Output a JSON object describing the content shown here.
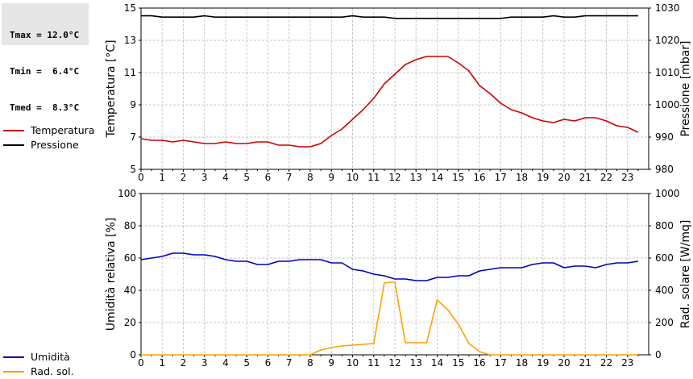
{
  "stats": {
    "tmax": "Tmax = 12.0°C",
    "tmin": "Tmin =  6.4°C",
    "tmed": "Tmed =  8.3°C"
  },
  "chart_data": [
    {
      "type": "line",
      "x_ticks": [
        "0",
        "1",
        "2",
        "3",
        "4",
        "5",
        "6",
        "7",
        "8",
        "9",
        "10",
        "11",
        "12",
        "13",
        "14",
        "15",
        "16",
        "17",
        "18",
        "19",
        "20",
        "21",
        "22",
        "23"
      ],
      "xlim": [
        0,
        24
      ],
      "ylabel_left": "Temperatura [°C]",
      "ylabel_right": "Pressione [mbar]",
      "ylim_left": [
        5,
        15
      ],
      "ylim_right": [
        980,
        1030
      ],
      "y_ticks_left": [
        5,
        7,
        9,
        11,
        13,
        15
      ],
      "y_ticks_right": [
        980,
        990,
        1000,
        1010,
        1020,
        1030
      ],
      "grid": true,
      "legend_position": "left",
      "series": [
        {
          "name": "Temperatura",
          "axis": "left",
          "color": "#cc0000",
          "x": [
            0,
            0.5,
            1,
            1.5,
            2,
            2.5,
            3,
            3.5,
            4,
            4.5,
            5,
            5.5,
            6,
            6.5,
            7,
            7.5,
            8,
            8.5,
            9,
            9.5,
            10,
            10.5,
            11,
            11.5,
            12,
            12.5,
            13,
            13.5,
            14,
            14.5,
            15,
            15.5,
            16,
            16.5,
            17,
            17.5,
            18,
            18.5,
            19,
            19.5,
            20,
            20.5,
            21,
            21.5,
            22,
            22.5,
            23,
            23.5
          ],
          "values": [
            6.9,
            6.8,
            6.8,
            6.7,
            6.8,
            6.7,
            6.6,
            6.6,
            6.7,
            6.6,
            6.6,
            6.7,
            6.7,
            6.5,
            6.5,
            6.4,
            6.4,
            6.6,
            7.1,
            7.5,
            8.1,
            8.7,
            9.4,
            10.3,
            10.9,
            11.5,
            11.8,
            12.0,
            12.0,
            12.0,
            11.6,
            11.1,
            10.2,
            9.7,
            9.1,
            8.7,
            8.5,
            8.2,
            8.0,
            7.9,
            8.1,
            8.0,
            8.2,
            8.2,
            8.0,
            7.7,
            7.6,
            7.3
          ]
        },
        {
          "name": "Pressione",
          "axis": "right",
          "color": "#000000",
          "x": [
            0,
            0.5,
            1,
            1.5,
            2,
            2.5,
            3,
            3.5,
            4,
            4.5,
            5,
            5.5,
            6,
            6.5,
            7,
            7.5,
            8,
            8.5,
            9,
            9.5,
            10,
            10.5,
            11,
            11.5,
            12,
            12.5,
            13,
            13.5,
            14,
            14.5,
            15,
            15.5,
            16,
            16.5,
            17,
            17.5,
            18,
            18.5,
            19,
            19.5,
            20,
            20.5,
            21,
            21.5,
            22,
            22.5,
            23,
            23.5
          ],
          "values": [
            1027.6,
            1027.6,
            1027.2,
            1027.2,
            1027.2,
            1027.2,
            1027.6,
            1027.2,
            1027.2,
            1027.2,
            1027.2,
            1027.2,
            1027.2,
            1027.2,
            1027.2,
            1027.2,
            1027.2,
            1027.2,
            1027.2,
            1027.2,
            1027.6,
            1027.2,
            1027.2,
            1027.2,
            1026.8,
            1026.8,
            1026.8,
            1026.8,
            1026.8,
            1026.8,
            1026.8,
            1026.8,
            1026.8,
            1026.8,
            1026.8,
            1027.2,
            1027.2,
            1027.2,
            1027.2,
            1027.6,
            1027.2,
            1027.2,
            1027.6,
            1027.6,
            1027.6,
            1027.6,
            1027.6,
            1027.6
          ]
        }
      ]
    },
    {
      "type": "line",
      "x_ticks": [
        "0",
        "1",
        "2",
        "3",
        "4",
        "5",
        "6",
        "7",
        "8",
        "9",
        "10",
        "11",
        "12",
        "13",
        "14",
        "15",
        "16",
        "17",
        "18",
        "19",
        "20",
        "21",
        "22",
        "23"
      ],
      "xlim": [
        0,
        24
      ],
      "ylabel_left": "Umidità relativa [%]",
      "ylabel_right": "Rad. solare [W/mq]",
      "ylim_left": [
        0,
        100
      ],
      "ylim_right": [
        0,
        1000
      ],
      "y_ticks_left": [
        0,
        20,
        40,
        60,
        80,
        100
      ],
      "y_ticks_right": [
        0,
        200,
        400,
        600,
        800,
        1000
      ],
      "grid": true,
      "legend_position": "left",
      "series": [
        {
          "name": "Umidità",
          "axis": "left",
          "color": "#0000bb",
          "x": [
            0,
            0.5,
            1,
            1.5,
            2,
            2.5,
            3,
            3.5,
            4,
            4.5,
            5,
            5.5,
            6,
            6.5,
            7,
            7.5,
            8,
            8.5,
            9,
            9.5,
            10,
            10.5,
            11,
            11.5,
            12,
            12.5,
            13,
            13.5,
            14,
            14.5,
            15,
            15.5,
            16,
            16.5,
            17,
            17.5,
            18,
            18.5,
            19,
            19.5,
            20,
            20.5,
            21,
            21.5,
            22,
            22.5,
            23,
            23.5
          ],
          "values": [
            59,
            60,
            61,
            63,
            63,
            62,
            62,
            61,
            59,
            58,
            58,
            56,
            56,
            58,
            58,
            59,
            59,
            59,
            57,
            57,
            53,
            52,
            50,
            49,
            47,
            47,
            46,
            46,
            48,
            48,
            49,
            49,
            52,
            53,
            54,
            54,
            54,
            56,
            57,
            57,
            54,
            55,
            55,
            54,
            56,
            57,
            57,
            58
          ]
        },
        {
          "name": "Rad. sol.",
          "axis": "right",
          "color": "#ffa000",
          "x": [
            0,
            1,
            2,
            3,
            4,
            5,
            6,
            7,
            8,
            8.5,
            9,
            9.5,
            10,
            10.5,
            11,
            11.5,
            11.8,
            12,
            12.5,
            13,
            13.5,
            14,
            14.5,
            15,
            15.5,
            16,
            16.5,
            17,
            18,
            19,
            20,
            21,
            22,
            23,
            23.5
          ],
          "values": [
            0,
            0,
            0,
            0,
            0,
            0,
            0,
            0,
            0,
            30,
            45,
            55,
            60,
            65,
            70,
            445,
            450,
            450,
            75,
            75,
            75,
            340,
            280,
            190,
            70,
            20,
            0,
            0,
            0,
            0,
            0,
            0,
            0,
            0,
            0
          ]
        }
      ]
    }
  ],
  "legend": {
    "top": [
      {
        "name": "Temperatura",
        "color": "#cc0000"
      },
      {
        "name": "Pressione",
        "color": "#000000"
      }
    ],
    "bottom": [
      {
        "name": "Umidità",
        "color": "#0000bb"
      },
      {
        "name": "Rad. sol.",
        "color": "#ffa000"
      }
    ]
  }
}
